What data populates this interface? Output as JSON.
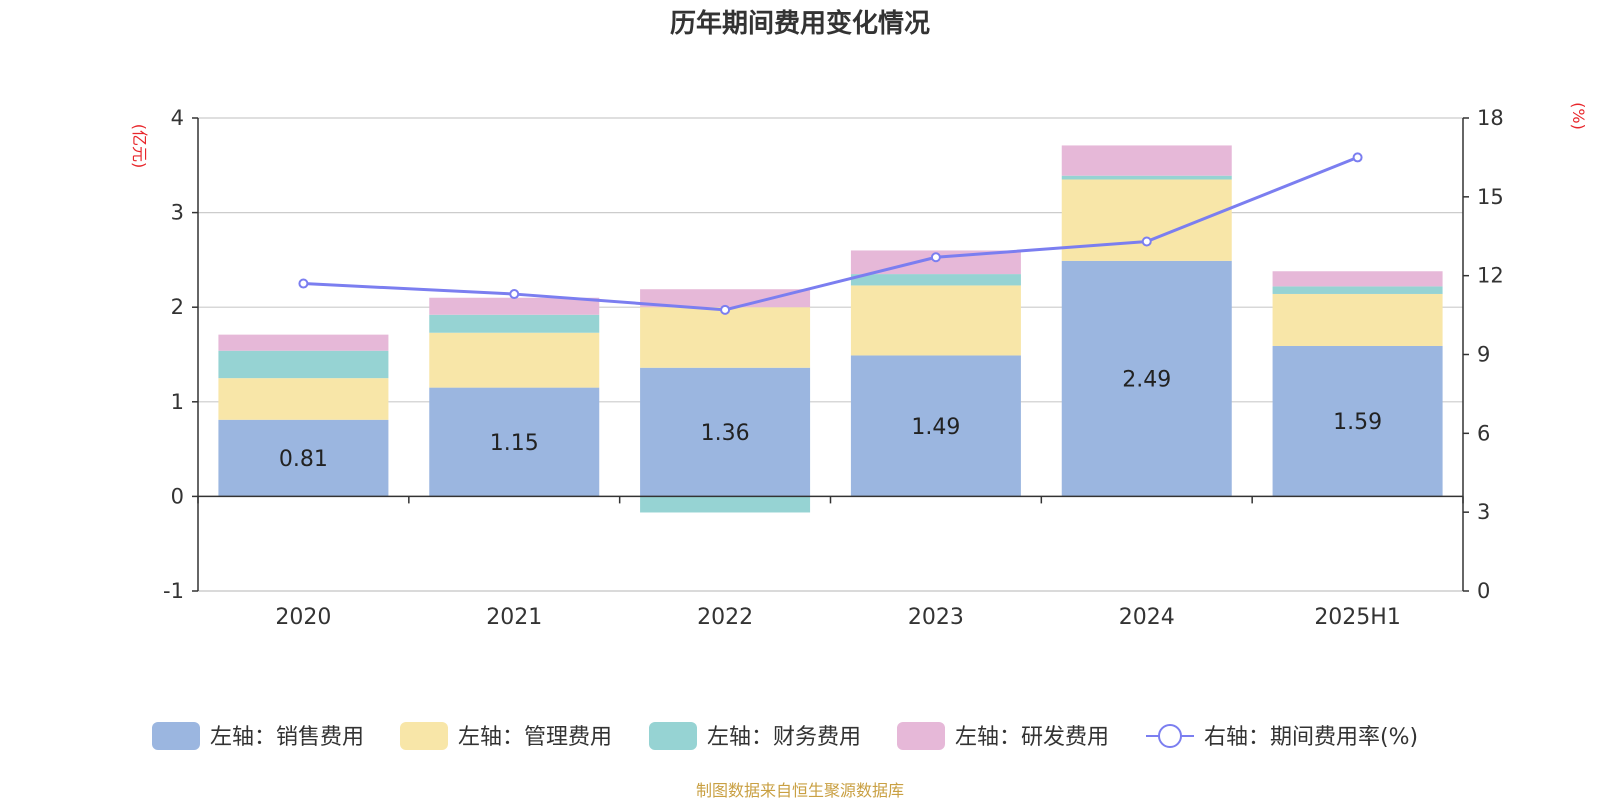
{
  "chart_data": {
    "type": "bar",
    "stacked": true,
    "title": "历年期间费用变化情况",
    "categories": [
      "2020",
      "2021",
      "2022",
      "2023",
      "2024",
      "2025H1"
    ],
    "left_axis": {
      "unit": "(亿元)",
      "ylim": [
        -1,
        4
      ],
      "ticks": [
        "-1",
        "0",
        "1",
        "2",
        "3",
        "4"
      ]
    },
    "right_axis": {
      "unit": "(%)",
      "ylim": [
        0,
        18
      ],
      "ticks": [
        "0",
        "3",
        "6",
        "9",
        "12",
        "15",
        "18"
      ]
    },
    "grid": true,
    "legend_position": "bottom",
    "series": [
      {
        "name": "左轴：销售费用",
        "type": "bar",
        "axis": "left",
        "color": "#9bb6e0",
        "values": [
          0.81,
          1.15,
          1.36,
          1.49,
          2.49,
          1.59
        ],
        "labels": [
          "0.81",
          "1.15",
          "1.36",
          "1.49",
          "2.49",
          "1.59"
        ]
      },
      {
        "name": "左轴：管理费用",
        "type": "bar",
        "axis": "left",
        "color": "#f8e6a8",
        "values": [
          0.44,
          0.58,
          0.64,
          0.74,
          0.86,
          0.55
        ]
      },
      {
        "name": "左轴：财务费用",
        "type": "bar",
        "axis": "left",
        "color": "#96d3d3",
        "values": [
          0.29,
          0.19,
          -0.17,
          0.12,
          0.04,
          0.08
        ]
      },
      {
        "name": "左轴：研发费用",
        "type": "bar",
        "axis": "left",
        "color": "#e6b8d8",
        "values": [
          0.17,
          0.18,
          0.19,
          0.25,
          0.32,
          0.16
        ]
      },
      {
        "name": "右轴：期间费用率(%)",
        "type": "line",
        "axis": "right",
        "color": "#7b7ef0",
        "values": [
          11.7,
          11.3,
          10.7,
          12.7,
          13.3,
          16.5
        ]
      }
    ],
    "unit_color": "#e8262b",
    "source": "制图数据来自恒生聚源数据库",
    "source_color": "#c9a043"
  }
}
